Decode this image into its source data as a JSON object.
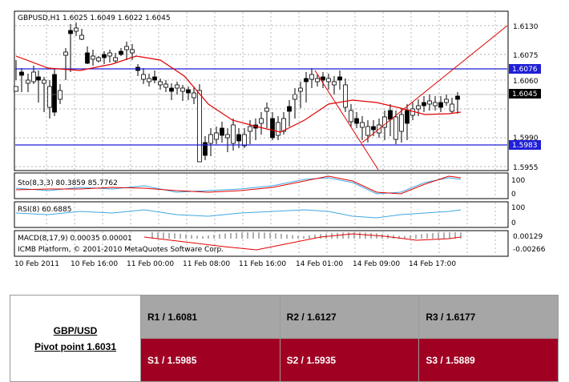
{
  "chart": {
    "header": "GBPUSD,H1  1.6025 1.6049 1.6022 1.6045",
    "price_ticks": [
      "1.6130",
      "1.6075",
      "1.6060",
      "1.5990",
      "1.5955"
    ],
    "price_boxes": [
      {
        "label": "1.6076",
        "bg": "#1f1fd6",
        "fg": "#ffffff"
      },
      {
        "label": "1.6045",
        "bg": "#000000",
        "fg": "#ffffff"
      },
      {
        "label": "1.5983",
        "bg": "#1f1fd6",
        "fg": "#ffffff"
      }
    ],
    "sto_label": "Sto(8,3,3) 80.3859 85.7762",
    "sto_ticks": [
      "100",
      "0"
    ],
    "rsi_label": "RSI(8) 60.6885",
    "rsi_ticks": [
      "100",
      "0"
    ],
    "macd_label": "MACD(8,17,9) 0.00035 0.00001",
    "macd_ticks": [
      "0.00129",
      "-0.00266"
    ],
    "copyright": "ICMB Platform, © 2001-2010 MetaQuotes Software Corp.",
    "time_labels": [
      "10 Feb 2011",
      "10 Feb 16:00",
      "11 Feb 00:00",
      "11 Feb 08:00",
      "11 Feb 16:00",
      "14 Feb 01:00",
      "14 Feb 09:00",
      "14 Feb 17:00"
    ],
    "colors": {
      "bull": "#ffffff",
      "bear": "#000000",
      "ma": "#e00000",
      "support": "#1f1fd6",
      "trend": "#e00000",
      "sto_main": "#3fa8e0",
      "sto_signal": "#e00000",
      "rsi": "#3fa8e0",
      "macd_hist": "#b0b0b0",
      "macd_signal": "#e00000"
    }
  },
  "pivot": {
    "pair": "GBP/USD",
    "pivot_text": "Pivot point 1.6031",
    "r1": "R1 / 1.6081",
    "r2": "R2 / 1.6127",
    "r3": "R3 / 1.6177",
    "s1": "S1 / 1.5985",
    "s2": "S2 / 1.5935",
    "s3": "S3 / 1.5889"
  }
}
